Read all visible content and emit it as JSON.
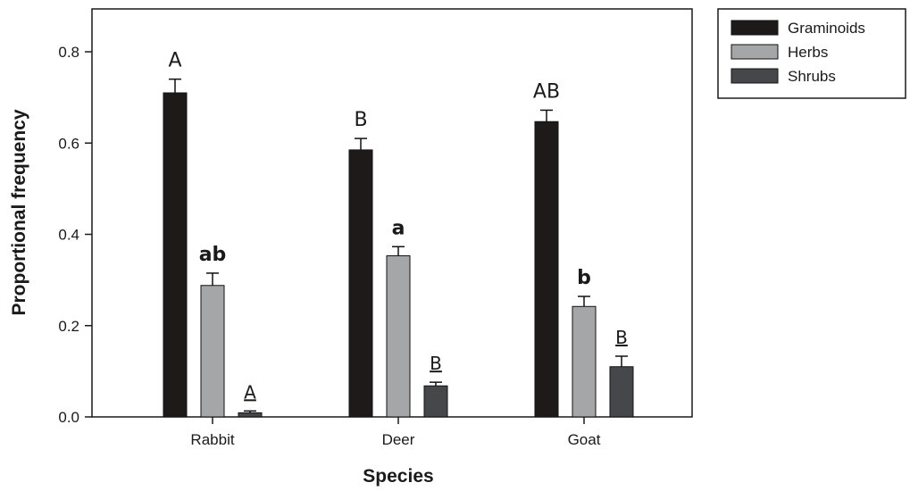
{
  "chart_data": {
    "type": "bar",
    "xlabel": "Species",
    "ylabel": "Proportional frequency",
    "ylim": [
      0,
      0.8
    ],
    "yticks": [
      "0.0",
      "0.2",
      "0.4",
      "0.6",
      "0.8"
    ],
    "categories": [
      "Rabbit",
      "Deer",
      "Goat"
    ],
    "series": [
      {
        "name": "Graminoids",
        "color": "#1f1a1a",
        "values": [
          0.71,
          0.585,
          0.647
        ],
        "errors": [
          0.03,
          0.025,
          0.025
        ]
      },
      {
        "name": "Herbs",
        "color": "#a4a6a8",
        "values": [
          0.288,
          0.353,
          0.242
        ],
        "errors": [
          0.027,
          0.02,
          0.022
        ]
      },
      {
        "name": "Shrubs",
        "color": "#45474b",
        "values": [
          0.009,
          0.068,
          0.11
        ],
        "errors": [
          0.004,
          0.008,
          0.023
        ]
      }
    ],
    "significance_letters": [
      {
        "series": "Graminoids",
        "labels": [
          "A",
          "B",
          "AB"
        ],
        "style": "upper"
      },
      {
        "series": "Herbs",
        "labels": [
          "ab",
          "a",
          "b"
        ],
        "style": "bold"
      },
      {
        "series": "Shrubs",
        "labels": [
          "A",
          "B",
          "B"
        ],
        "style": "underline"
      }
    ],
    "legend": {
      "position": "top-right-outside",
      "entries": [
        "Graminoids",
        "Herbs",
        "Shrubs"
      ]
    }
  }
}
